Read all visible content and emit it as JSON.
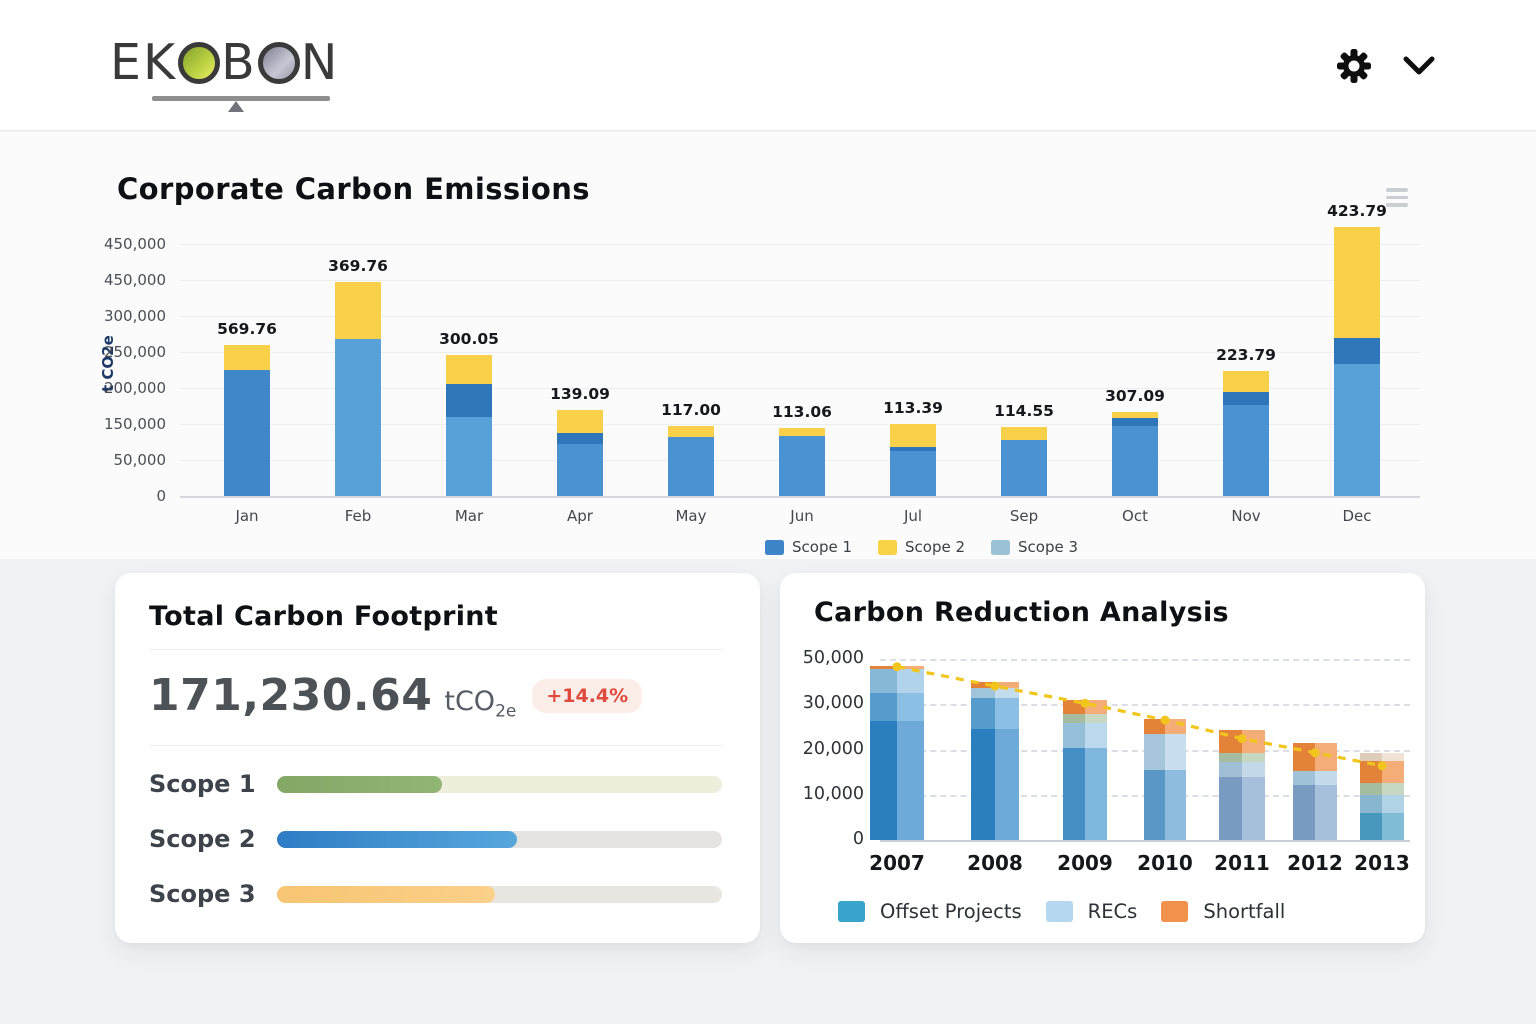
{
  "header": {
    "logo": {
      "part1": "EK",
      "part2": "B",
      "part3": "N",
      "full_name": "EKOBON"
    },
    "icons": [
      "settings-gear",
      "chevron-down"
    ]
  },
  "footprint": {
    "title": "Total Carbon Footprint",
    "value": "171,230.64",
    "unit_prefix": "tCO",
    "unit_sub": "2e",
    "badge": "+14.4%",
    "badge_color": "#DF4A40",
    "scopes": [
      {
        "label": "Scope 1",
        "percent": 37,
        "color_start": "#84A766",
        "color_end": "#90B574",
        "track": "#EDEEDC"
      },
      {
        "label": "Scope 2",
        "percent": 54,
        "color_start": "#2E7CC4",
        "color_end": "#57A7DD",
        "track": "#E7E3E0"
      },
      {
        "label": "Scope 3",
        "percent": 49,
        "color_start": "#F7C573",
        "color_end": "#FBD089",
        "track": "#E9E5E1"
      }
    ]
  },
  "chart_data": [
    {
      "type": "bar",
      "stacked": true,
      "title": "Corporate Carbon Emissions",
      "y_axis_title": "t CO2e",
      "y_tick_labels": [
        "450,000",
        "450,000",
        "300,000",
        "250,000",
        "200,000",
        "150,000",
        "50,000",
        "0"
      ],
      "y_axis_max": 500000,
      "grid": true,
      "legend": [
        "Scope 1",
        "Scope 2",
        "Scope 3"
      ],
      "legend_colors": [
        "#3D85C8",
        "#F8D347",
        "#9CC3D5"
      ],
      "categories": [
        "Jan",
        "Feb",
        "Mar",
        "Apr",
        "May",
        "Jun",
        "Jul",
        "Sep",
        "Oct",
        "Nov",
        "Dec"
      ],
      "bar_value_labels": [
        "569.76",
        "369.76",
        "300.05",
        "139.09",
        "117.00",
        "113.06",
        "113.39",
        "114.55",
        "307.09",
        "223.79",
        "423.79"
      ],
      "bars": [
        {
          "month": "Jan",
          "label": "569.76",
          "segments": [
            {
              "value": 250000,
              "color": "#3F87C9"
            },
            {
              "value": 50000,
              "color": "#F8D04A"
            }
          ]
        },
        {
          "month": "Feb",
          "label": "369.76",
          "segments": [
            {
              "value": 311000,
              "color": "#58A1D8"
            },
            {
              "value": 113000,
              "color": "#F8D04A"
            }
          ]
        },
        {
          "month": "Mar",
          "label": "300.05",
          "segments": [
            {
              "value": 157000,
              "color": "#58A1D8"
            },
            {
              "value": 65000,
              "color": "#2F76BB"
            },
            {
              "value": 58000,
              "color": "#F8D04A"
            }
          ]
        },
        {
          "month": "Apr",
          "label": "139.09",
          "segments": [
            {
              "value": 103000,
              "color": "#4A92D2"
            },
            {
              "value": 22000,
              "color": "#2F76BB"
            },
            {
              "value": 46000,
              "color": "#F8D04A"
            }
          ]
        },
        {
          "month": "May",
          "label": "117.00",
          "segments": [
            {
              "value": 117000,
              "color": "#4A92D2"
            },
            {
              "value": 22000,
              "color": "#F8D04A"
            }
          ]
        },
        {
          "month": "Jun",
          "label": "113.06",
          "segments": [
            {
              "value": 119000,
              "color": "#4A92D2"
            },
            {
              "value": 16000,
              "color": "#F8D04A"
            }
          ]
        },
        {
          "month": "Jul",
          "label": "113.39",
          "segments": [
            {
              "value": 89000,
              "color": "#4A92D2"
            },
            {
              "value": 8000,
              "color": "#2F76BB"
            },
            {
              "value": 46000,
              "color": "#F8D04A"
            }
          ]
        },
        {
          "month": "Sep",
          "label": "114.55",
          "segments": [
            {
              "value": 111000,
              "color": "#4A92D2"
            },
            {
              "value": 26000,
              "color": "#F8D04A"
            }
          ]
        },
        {
          "month": "Oct",
          "label": "307.09",
          "segments": [
            {
              "value": 139000,
              "color": "#4A92D2"
            },
            {
              "value": 16000,
              "color": "#2F76BB"
            },
            {
              "value": 12000,
              "color": "#F8D04A"
            }
          ]
        },
        {
          "month": "Nov",
          "label": "223.79",
          "segments": [
            {
              "value": 181000,
              "color": "#4A92D2"
            },
            {
              "value": 26000,
              "color": "#2F76BB"
            },
            {
              "value": 42000,
              "color": "#F8D04A"
            }
          ]
        },
        {
          "month": "Dec",
          "label": "423.79",
          "segments": [
            {
              "value": 262000,
              "color": "#58A1D8"
            },
            {
              "value": 52000,
              "color": "#2F76BB"
            },
            {
              "value": 220000,
              "color": "#F8D04A"
            }
          ]
        }
      ]
    },
    {
      "type": "bar+line",
      "stacked": true,
      "title": "Carbon Reduction Analysis",
      "y_tick_labels": [
        "50,000",
        "30,000",
        "20,000",
        "10,000",
        "0"
      ],
      "grid": true,
      "legend": [
        "Offset Projects",
        "RECs",
        "Shortfall"
      ],
      "legend_colors": [
        "#38A3CB",
        "#B5D8F0",
        "#F0914C"
      ],
      "categories": [
        "2007",
        "2008",
        "2009",
        "2010",
        "2011",
        "2012",
        "2013"
      ],
      "trend_line": {
        "values": [
          38300,
          34000,
          30200,
          26500,
          22400,
          19300,
          16400
        ],
        "color": "#F2C51D",
        "style": "dashed",
        "markers": true
      },
      "bars": [
        {
          "year": "2007",
          "segments": [
            {
              "value": 26300,
              "color": "#2E86C9"
            },
            {
              "value": 6100,
              "color": "#5AA4D8"
            },
            {
              "value": 5300,
              "color": "#8FC2E4"
            },
            {
              "value": 700,
              "color": "#EF8A3C"
            }
          ]
        },
        {
          "year": "2008",
          "segments": [
            {
              "value": 24500,
              "color": "#2E86C9"
            },
            {
              "value": 6800,
              "color": "#5AA4D8"
            },
            {
              "value": 2200,
              "color": "#A9CFE6"
            },
            {
              "value": 1300,
              "color": "#EF8A3C"
            }
          ]
        },
        {
          "year": "2009",
          "segments": [
            {
              "value": 20300,
              "color": "#4796CF"
            },
            {
              "value": 5600,
              "color": "#9CC9E4"
            },
            {
              "value": 1900,
              "color": "#AEC6A8"
            },
            {
              "value": 3100,
              "color": "#EF8A3C"
            }
          ]
        },
        {
          "year": "2010",
          "segments": [
            {
              "value": 15400,
              "color": "#5E9FD0"
            },
            {
              "value": 8100,
              "color": "#AFD0E6"
            },
            {
              "value": 3300,
              "color": "#EF8A3C"
            }
          ]
        },
        {
          "year": "2011",
          "segments": [
            {
              "value": 14000,
              "color": "#7FA3CB"
            },
            {
              "value": 3300,
              "color": "#A9C8E0"
            },
            {
              "value": 2000,
              "color": "#AEC6A8"
            },
            {
              "value": 5100,
              "color": "#EF8A3C"
            }
          ]
        },
        {
          "year": "2012",
          "segments": [
            {
              "value": 12200,
              "color": "#7FA3CB"
            },
            {
              "value": 3100,
              "color": "#A9CCE4"
            },
            {
              "value": 6200,
              "color": "#EF8A3C"
            }
          ]
        },
        {
          "year": "2013",
          "segments": [
            {
              "value": 6000,
              "color": "#4BA0C6"
            },
            {
              "value": 4000,
              "color": "#8FC0DC"
            },
            {
              "value": 2700,
              "color": "#AEC6A8"
            },
            {
              "value": 4700,
              "color": "#EF8A3C"
            },
            {
              "value": 1800,
              "color": "#E9D8C4"
            }
          ]
        }
      ]
    }
  ]
}
